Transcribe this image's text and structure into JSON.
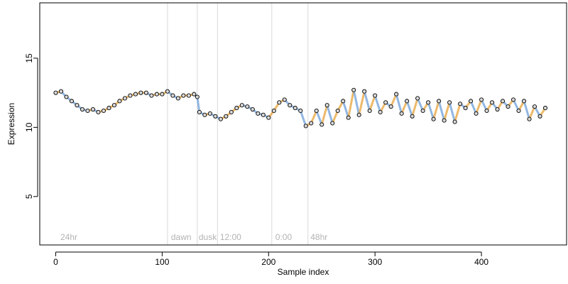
{
  "chart_data": {
    "type": "scatter",
    "title": "",
    "xlabel": "Sample index",
    "ylabel": "Expression",
    "xlim": [
      -15,
      480
    ],
    "ylim": [
      1.5,
      19
    ],
    "x_ticks": [
      0,
      100,
      200,
      300,
      400
    ],
    "y_ticks": [
      5,
      10,
      15
    ],
    "grid": false,
    "legend": "none",
    "vlines": [
      105,
      133,
      152,
      203,
      237
    ],
    "annotations": [
      {
        "text": "24hr",
        "x": 3
      },
      {
        "text": "dawn",
        "x": 107
      },
      {
        "text": "dusk",
        "x": 133
      },
      {
        "text": "12:00",
        "x": 153
      },
      {
        "text": "0:00",
        "x": 205
      },
      {
        "text": "48hr",
        "x": 238
      }
    ],
    "colors": {
      "above_segment": "#e8a33a",
      "below_segment": "#6e9fd8",
      "point_fill": "#d9d9d9",
      "point_stroke": "#000000",
      "vline": "#d9d9d9",
      "annotation": "#b3b3b3"
    },
    "series": [
      {
        "x": [
          0,
          5,
          10,
          15,
          20,
          25,
          30,
          35,
          40,
          45,
          50,
          55,
          60,
          65,
          70,
          75,
          80,
          85,
          90,
          95,
          100,
          105,
          110,
          115,
          120,
          125,
          130,
          133,
          135,
          140,
          145,
          150,
          155,
          160,
          165,
          170,
          175,
          180,
          185,
          190,
          195,
          200,
          205,
          210,
          215,
          220,
          225,
          230,
          235,
          240,
          245,
          250,
          255,
          260,
          265,
          270,
          275,
          280,
          285,
          290,
          295,
          300,
          305,
          310,
          315,
          320,
          325,
          330,
          335,
          340,
          345,
          350,
          355,
          360,
          365,
          370,
          375,
          380,
          385,
          390,
          395,
          400,
          405,
          410,
          415,
          420,
          425,
          430,
          435,
          440,
          445,
          450,
          455,
          460
        ],
        "values": [
          12.5,
          12.6,
          12.2,
          11.9,
          11.6,
          11.3,
          11.2,
          11.3,
          11.1,
          11.2,
          11.4,
          11.6,
          11.9,
          12.1,
          12.3,
          12.4,
          12.5,
          12.5,
          12.3,
          12.4,
          12.4,
          12.6,
          12.3,
          12.1,
          12.3,
          12.3,
          12.4,
          12.2,
          11.1,
          10.9,
          11.0,
          10.8,
          10.6,
          10.8,
          11.1,
          11.4,
          11.6,
          11.5,
          11.3,
          11.0,
          10.9,
          10.7,
          11.2,
          11.8,
          12.0,
          11.6,
          11.4,
          11.2,
          10.1,
          10.3,
          11.2,
          10.2,
          11.6,
          10.3,
          11.2,
          11.9,
          10.7,
          12.7,
          10.9,
          12.6,
          11.2,
          12.3,
          11.1,
          11.8,
          11.5,
          12.4,
          11.0,
          11.9,
          10.8,
          12.1,
          11.2,
          11.8,
          10.6,
          11.9,
          10.5,
          11.8,
          10.4,
          11.7,
          11.4,
          11.9,
          11.0,
          12.0,
          11.2,
          11.8,
          11.3,
          11.9,
          11.5,
          12.0,
          11.2,
          11.9,
          10.6,
          11.5,
          10.8,
          11.4
        ]
      }
    ]
  }
}
